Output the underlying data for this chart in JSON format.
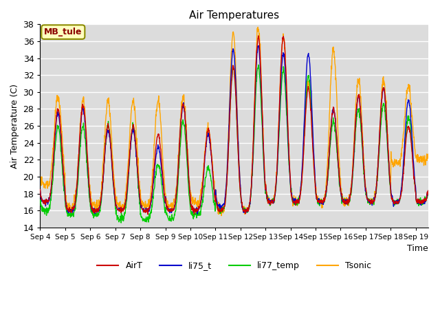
{
  "title": "Air Temperatures",
  "xlabel": "Time",
  "ylabel": "Air Temperature (C)",
  "ylim": [
    14,
    38
  ],
  "yticks": [
    14,
    16,
    18,
    20,
    22,
    24,
    26,
    28,
    30,
    32,
    34,
    36,
    38
  ],
  "x_labels": [
    "Sep 4",
    "Sep 5",
    "Sep 6",
    "Sep 7",
    "Sep 8",
    "Sep 9",
    "Sep 10",
    "Sep 11",
    "Sep 12",
    "Sep 13",
    "Sep 14",
    "Sep 15",
    "Sep 16",
    "Sep 17",
    "Sep 18",
    "Sep 19"
  ],
  "annotation_text": "MB_tule",
  "annotation_color": "#8B0000",
  "annotation_bg": "#FFFFC0",
  "line_colors": {
    "AirT": "#CC0000",
    "li75_t": "#0000CC",
    "li77_temp": "#00CC00",
    "Tsonic": "#FFA500"
  },
  "bg_color": "#DCDCDC",
  "grid_color": "#FFFFFF",
  "legend_entries": [
    "AirT",
    "li75_t",
    "li77_temp",
    "Tsonic"
  ]
}
